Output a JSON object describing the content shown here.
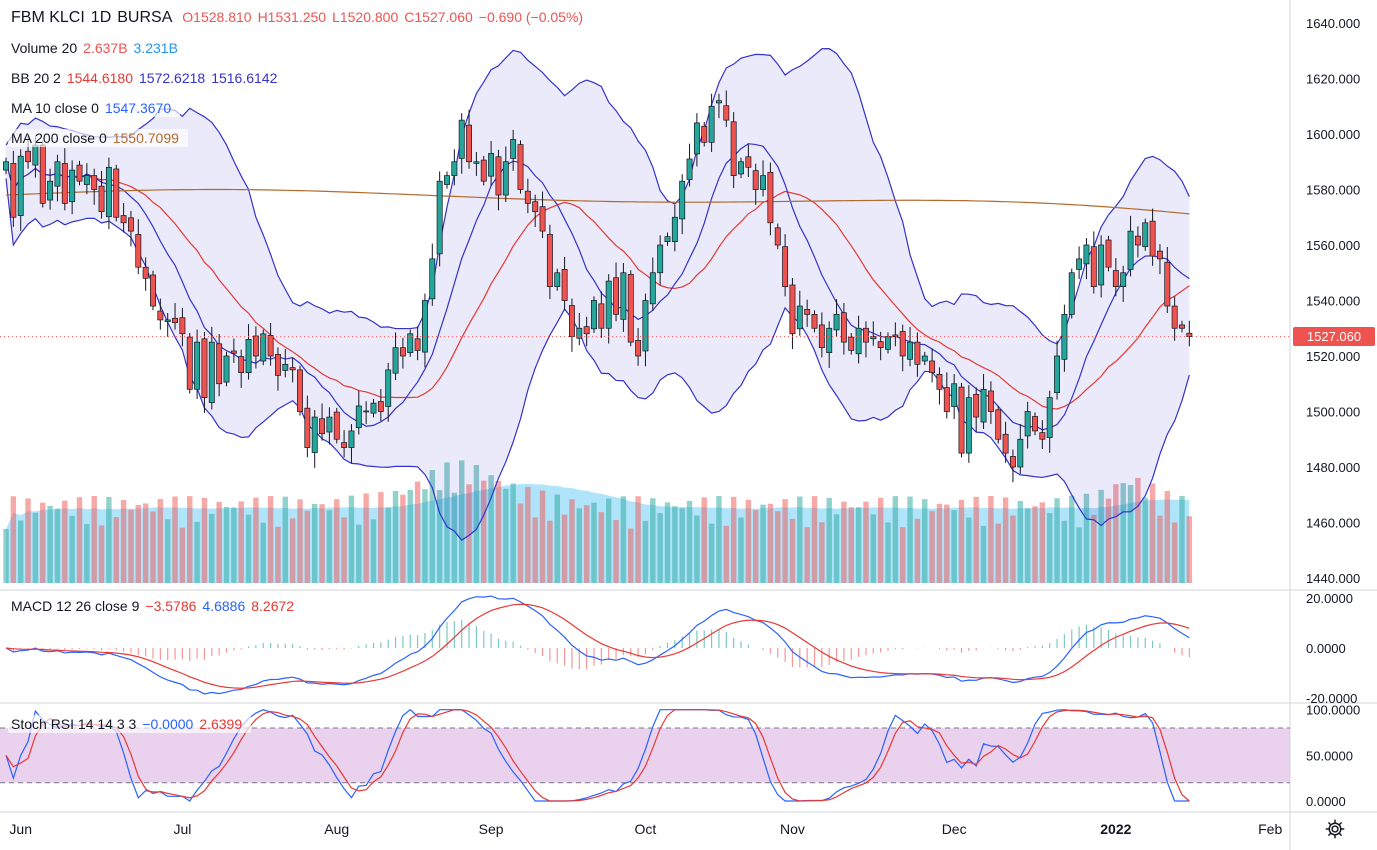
{
  "header": {
    "symbol": "FBM KLCI",
    "interval": "1D",
    "exchange": "BURSA",
    "o": "O1528.810",
    "h": "H1531.250",
    "l": "L1520.800",
    "c": "C1527.060",
    "change": "−0.690 (−0.05%)"
  },
  "legends": {
    "volume": {
      "label": "Volume 20",
      "v1": "2.637B",
      "v2": "3.231B"
    },
    "bb": {
      "label": "BB 20 2",
      "v1": "1544.6180",
      "v2": "1572.6218",
      "v3": "1516.6142"
    },
    "ma10": {
      "label": "MA 10 close 0",
      "v1": "1547.3670"
    },
    "ma200": {
      "label": "MA 200 close 0",
      "v1": "1550.7099"
    },
    "macd": {
      "label": "MACD 12 26 close 9",
      "v1": "−3.5786",
      "v2": "4.6886",
      "v3": "8.2672"
    },
    "stoch": {
      "label": "Stoch RSI 14 14 3 3",
      "v1": "−0.0000",
      "v2": "2.6399"
    }
  },
  "last_price_label": "1527.060",
  "colors": {
    "up": "#26a69a",
    "down": "#ef5350",
    "bb": "#3333cc",
    "ma": "#e53935",
    "ma200": "#b26b2e",
    "macd": "#2962ff",
    "signal": "#e53935",
    "stoch_band": "#e1bee7"
  },
  "chart_data": {
    "type": "candlestick",
    "title": "FBM KLCI · 1D · BURSA",
    "price_axis": {
      "min": 1440,
      "max": 1640,
      "ticks": [
        "1640.000",
        "1620.000",
        "1600.000",
        "1580.000",
        "1560.000",
        "1540.000",
        "1520.000",
        "1500.000",
        "1480.000",
        "1460.000",
        "1440.000"
      ]
    },
    "macd_axis": {
      "min": -20,
      "max": 20,
      "ticks": [
        "20.0000",
        "0.0000",
        "-20.0000"
      ]
    },
    "stoch_axis": {
      "min": 0,
      "max": 100,
      "ticks": [
        "100.0000",
        "50.0000",
        "0.0000"
      ],
      "band": [
        20,
        80
      ]
    },
    "x_labels": [
      {
        "label": "Jun",
        "index": 2
      },
      {
        "label": "Jul",
        "index": 24
      },
      {
        "label": "Aug",
        "index": 45
      },
      {
        "label": "Sep",
        "index": 66
      },
      {
        "label": "Oct",
        "index": 87
      },
      {
        "label": "Nov",
        "index": 107
      },
      {
        "label": "Dec",
        "index": 129
      },
      {
        "label": "2022",
        "index": 151
      },
      {
        "label": "Feb",
        "index": 172
      }
    ],
    "closes": [
      1590,
      1570,
      1592,
      1590,
      1596,
      1575,
      1583,
      1590,
      1575,
      1587,
      1583,
      1585,
      1580,
      1572,
      1588,
      1570,
      1568,
      1565,
      1552,
      1548,
      1538,
      1533,
      1533,
      1532,
      1528,
      1508,
      1525,
      1505,
      1525,
      1510,
      1520,
      1521,
      1514,
      1526,
      1520,
      1528,
      1520,
      1513,
      1517,
      1515,
      1500,
      1487,
      1498,
      1492,
      1498,
      1490,
      1487,
      1493,
      1502,
      1500,
      1503,
      1500,
      1515,
      1523,
      1520,
      1528,
      1522,
      1540,
      1555,
      1583,
      1585,
      1590,
      1605,
      1590,
      1590,
      1583,
      1593,
      1578,
      1590,
      1598,
      1580,
      1575,
      1572,
      1565,
      1545,
      1550,
      1540,
      1527,
      1530,
      1528,
      1540,
      1530,
      1547,
      1535,
      1550,
      1525,
      1520,
      1540,
      1550,
      1560,
      1563,
      1570,
      1583,
      1591,
      1604,
      1597,
      1610,
      1612,
      1605,
      1585,
      1590,
      1588,
      1580,
      1585,
      1568,
      1560,
      1545,
      1528,
      1538,
      1535,
      1530,
      1523,
      1530,
      1535,
      1525,
      1522,
      1530,
      1525,
      1527,
      1523,
      1527,
      1527,
      1520,
      1525,
      1517,
      1520,
      1514,
      1508,
      1500,
      1510,
      1485,
      1505,
      1498,
      1508,
      1500,
      1490,
      1485,
      1480,
      1490,
      1500,
      1493,
      1490,
      1505,
      1520,
      1535,
      1550,
      1555,
      1560,
      1545,
      1560,
      1552,
      1545,
      1550,
      1565,
      1560,
      1568,
      1556,
      1555,
      1538,
      1530,
      1530,
      1527
    ],
    "series": [
      {
        "name": "BB basis",
        "role": "bb_basis"
      },
      {
        "name": "BB upper",
        "role": "bb_upper"
      },
      {
        "name": "BB lower",
        "role": "bb_lower"
      },
      {
        "name": "MA 10",
        "role": "ma10"
      },
      {
        "name": "MA 200",
        "role": "ma200"
      },
      {
        "name": "Volume",
        "role": "volume"
      },
      {
        "name": "MACD",
        "role": "macd"
      },
      {
        "name": "Signal",
        "role": "signal"
      },
      {
        "name": "Histogram",
        "role": "hist"
      },
      {
        "name": "Stoch RSI K",
        "role": "k"
      },
      {
        "name": "Stoch RSI D",
        "role": "d"
      }
    ]
  }
}
